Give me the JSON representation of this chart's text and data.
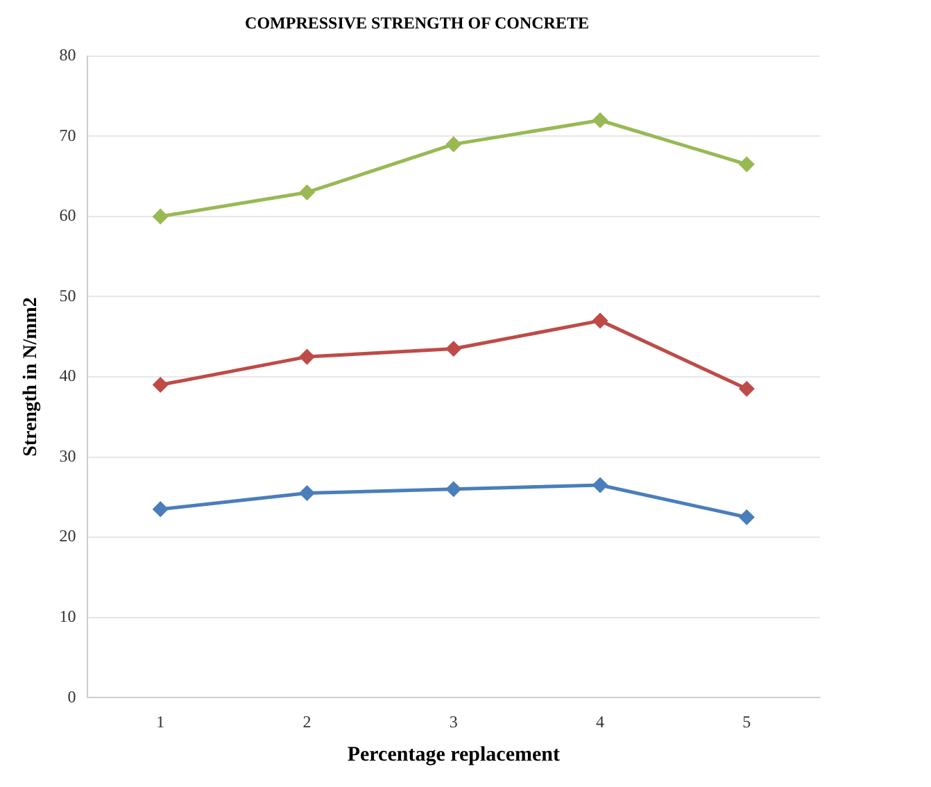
{
  "chart_data": {
    "type": "line",
    "title": "COMPRESSIVE STRENGTH OF CONCRETE",
    "xlabel": "Percentage replacement",
    "ylabel": "Strength in N/mm2",
    "categories": [
      "1",
      "2",
      "3",
      "4",
      "5"
    ],
    "series": [
      {
        "color": "#4a7ebb",
        "values": [
          23.5,
          25.5,
          26,
          26.5,
          22.5
        ]
      },
      {
        "color": "#be4b48",
        "values": [
          39,
          42.5,
          43.5,
          47,
          38.5
        ]
      },
      {
        "color": "#98b954",
        "values": [
          60,
          63,
          69,
          72,
          66.5
        ]
      }
    ],
    "ylim": [
      0,
      80
    ],
    "yticks": [
      0,
      10,
      20,
      30,
      40,
      50,
      60,
      70,
      80
    ],
    "grid": "y",
    "marker": "diamond",
    "line_style": "solid"
  }
}
